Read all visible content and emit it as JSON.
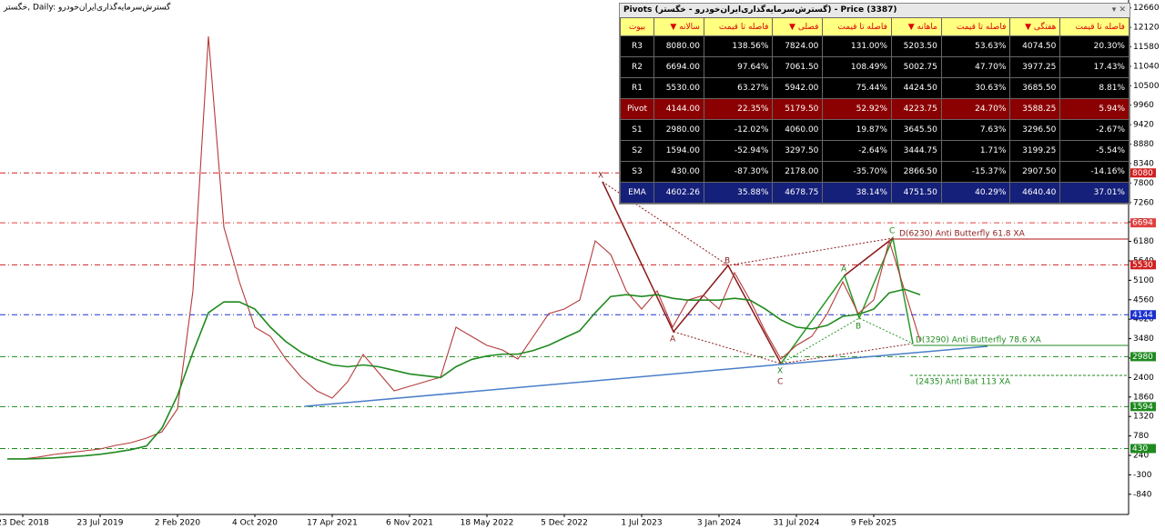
{
  "chart_data": {
    "type": "line",
    "title": "خگستر, Daily: گسترش‌سرمایه‌گذاری‌ایران‌خودرو",
    "categories": [
      null,
      "23 Dec 2018",
      null,
      null,
      null,
      null,
      "23 Jul 2019",
      null,
      null,
      null,
      null,
      "2 Feb 2020",
      null,
      null,
      null,
      null,
      "4 Oct 2020",
      null,
      null,
      null,
      null,
      "17 Apr 2021",
      null,
      null,
      null,
      null,
      "6 Nov 2021",
      null,
      null,
      null,
      null,
      "18 May 2022",
      null,
      null,
      null,
      null,
      "5 Dec 2022",
      null,
      null,
      null,
      null,
      "1 Jul 2023",
      null,
      null,
      null,
      null,
      "3 Jan 2024",
      null,
      null,
      null,
      null,
      "31 Jul 2024",
      null,
      null,
      null,
      null,
      "9 Feb 2025",
      null,
      null,
      null
    ],
    "series": [
      {
        "color": "#b53a3a",
        "values": [
          140,
          140,
          190,
          265,
          315,
          366,
          417,
          517,
          593,
          720,
          896,
          1527,
          4806,
          11871,
          6573,
          5059,
          3797,
          3545,
          2914,
          2410,
          2031,
          1829,
          2284,
          3040,
          2536,
          2031,
          2157,
          2284,
          2410,
          3797,
          3545,
          3293,
          3167,
          2914,
          3545,
          4176,
          4302,
          4554,
          6194,
          5816,
          4806,
          4302,
          4806,
          3797,
          4554,
          4680,
          4302,
          5311,
          4554,
          3671,
          2914,
          3293,
          3545,
          4176,
          5059,
          4176,
          4554,
          6194,
          4806,
          3419
        ]
      },
      {
        "color": "#1f8a1f",
        "values": [
          140,
          140,
          150,
          170,
          200,
          230,
          270,
          330,
          400,
          500,
          1000,
          1900,
          3100,
          4200,
          4500,
          4500,
          4300,
          3800,
          3400,
          3100,
          2900,
          2750,
          2700,
          2750,
          2700,
          2600,
          2500,
          2450,
          2400,
          2700,
          2900,
          3000,
          3050,
          3050,
          3150,
          3300,
          3500,
          3700,
          4200,
          4650,
          4700,
          4650,
          4700,
          4600,
          4550,
          4550,
          4550,
          4600,
          4550,
          4300,
          4000,
          3800,
          3750,
          3850,
          4100,
          4150,
          4300,
          4750,
          4850,
          4700
        ]
      }
    ],
    "ylim": [
      -1400,
      12880
    ],
    "yticks": [
      -840,
      -300,
      240,
      780,
      1320,
      1860,
      2400,
      2940,
      3480,
      4020,
      4560,
      5100,
      5640,
      6180,
      6720,
      7260,
      7800,
      8340,
      8880,
      9420,
      9960,
      10500,
      11040,
      11580,
      12120,
      12660
    ],
    "levels": [
      {
        "value": 8080,
        "color": "#d02020"
      },
      {
        "value": 6694,
        "color": "#e04040"
      },
      {
        "value": 5530,
        "color": "#d02020"
      },
      {
        "value": 4144,
        "color": "#1a2fd0"
      },
      {
        "value": 2980,
        "color": "#1f8a1f"
      },
      {
        "value": 1594,
        "color": "#1f8a1f"
      },
      {
        "value": 430,
        "color": "#1f8a1f"
      }
    ],
    "annotations": [
      "X",
      "A",
      "B",
      "C",
      "X",
      "A",
      "B",
      "C",
      "D(6230) Anti Butterfly 61.8 XA",
      "D(3290) Anti Butterfly 78.6 XA",
      "(2435) Anti Bat 113 XA"
    ]
  },
  "pivot_table": {
    "title": "Pivots (گسترش‌سرمایه‌گذاری‌ایران‌خودرو - خگستر) - Price (3387)",
    "header": [
      "بیوت",
      "سالانه",
      "فاصله تا قیمت",
      "فصلی",
      "فاصله تا قیمت",
      "ماهانه",
      "فاصله تا قیمت",
      "هفتگی",
      "فاصله تا قیمت"
    ],
    "rows": [
      [
        "R3",
        "8080.00",
        "138.56%",
        "7824.00",
        "131.00%",
        "5203.50",
        "53.63%",
        "4074.50",
        "20.30%"
      ],
      [
        "R2",
        "6694.00",
        "97.64%",
        "7061.50",
        "108.49%",
        "5002.75",
        "47.70%",
        "3977.25",
        "17.43%"
      ],
      [
        "R1",
        "5530.00",
        "63.27%",
        "5942.00",
        "75.44%",
        "4424.50",
        "30.63%",
        "3685.50",
        "8.81%"
      ],
      [
        "Pivot",
        "4144.00",
        "22.35%",
        "5179.50",
        "52.92%",
        "4223.75",
        "24.70%",
        "3588.25",
        "5.94%"
      ],
      [
        "S1",
        "2980.00",
        "-12.02%",
        "4060.00",
        "19.87%",
        "3645.50",
        "7.63%",
        "3296.50",
        "-2.67%"
      ],
      [
        "S2",
        "1594.00",
        "-52.94%",
        "3297.50",
        "-2.64%",
        "3444.75",
        "1.71%",
        "3199.25",
        "-5.54%"
      ],
      [
        "S3",
        "430.00",
        "-87.30%",
        "2178.00",
        "-35.70%",
        "2866.50",
        "-15.37%",
        "2907.50",
        "-14.16%"
      ],
      [
        "EMA",
        "4602.26",
        "35.88%",
        "4678.75",
        "38.14%",
        "4751.50",
        "40.29%",
        "4640.40",
        "37.01%"
      ]
    ]
  }
}
